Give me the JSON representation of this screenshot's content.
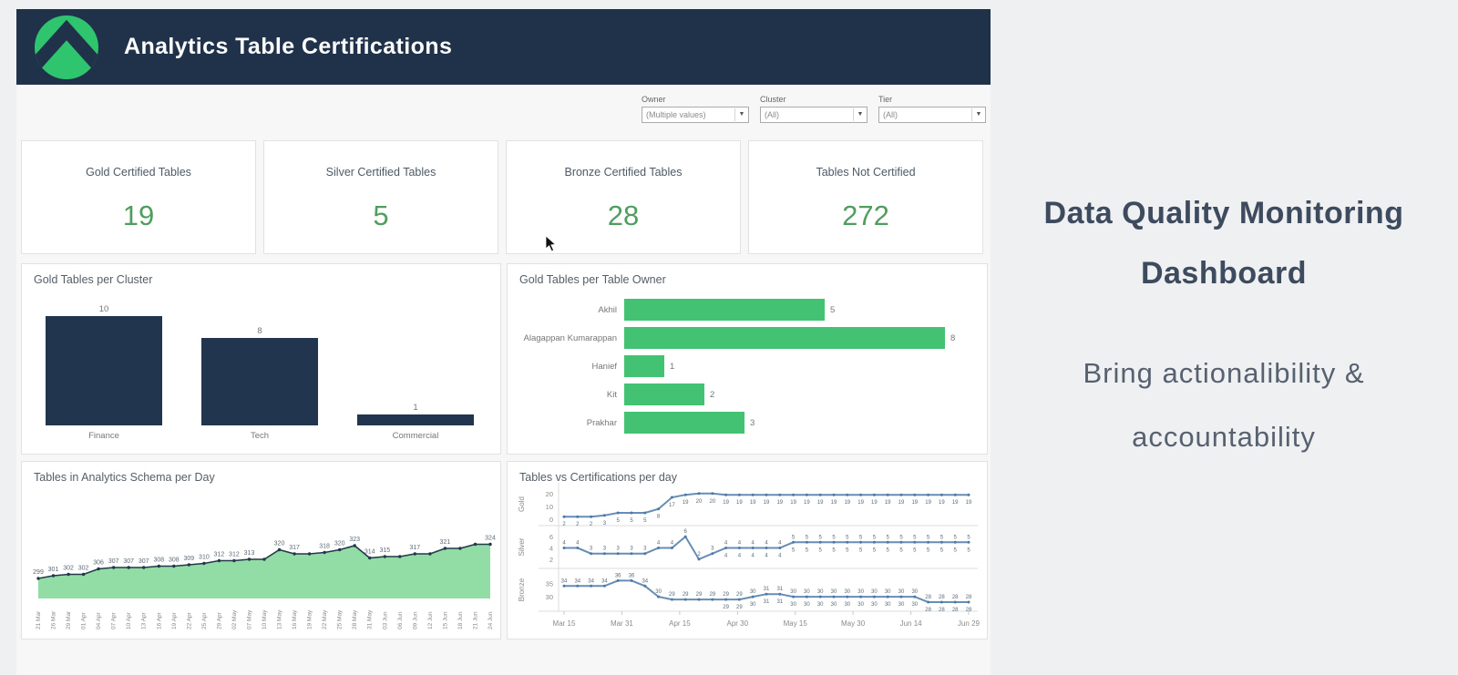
{
  "header": {
    "title": "Analytics Table Certifications",
    "logo": "green-mountain-chevron"
  },
  "filters": [
    {
      "label": "Owner",
      "value": "(Multiple values)"
    },
    {
      "label": "Cluster",
      "value": "(All)"
    },
    {
      "label": "Tier",
      "value": "(All)"
    }
  ],
  "kpis": [
    {
      "label": "Gold Certified Tables",
      "value": "19"
    },
    {
      "label": "Silver Certified Tables",
      "value": "5"
    },
    {
      "label": "Bronze Certified Tables",
      "value": "28"
    },
    {
      "label": "Tables Not Certified",
      "value": "272"
    }
  ],
  "right_panel": {
    "title_line1": "Data Quality Monitoring",
    "title_line2": "Dashboard",
    "subtitle_line1": "Bring actionalibility &",
    "subtitle_line2": "accountability"
  },
  "colors": {
    "header_navy": "#203249",
    "bar_navy": "#21354f",
    "logo_green": "#2fc56f",
    "kpi_green": "#4f9e5f",
    "owner_bar_green": "#44c273",
    "area_fill_green": "#92dca6",
    "area_line": "#24384a",
    "line_blue": "#4e79a7"
  },
  "chart_data": [
    {
      "id": "cluster",
      "type": "bar",
      "title": "Gold Tables per Cluster",
      "categories": [
        "Finance",
        "Tech",
        "Commercial"
      ],
      "values": [
        10,
        8,
        1
      ],
      "ylim": [
        0,
        10
      ],
      "bar_color": "#21354f",
      "grid": false,
      "value_labels": true
    },
    {
      "id": "owner",
      "type": "bar",
      "orientation": "horizontal",
      "title": "Gold Tables per Table Owner",
      "categories": [
        "Akhil",
        "Alagappan Kumarappan",
        "Hanief",
        "Kit",
        "Prakhar"
      ],
      "values": [
        5,
        8,
        1,
        2,
        3
      ],
      "xlim": [
        0,
        8
      ],
      "bar_color": "#44c273",
      "grid": false,
      "value_labels": true
    },
    {
      "id": "schema",
      "type": "area",
      "title": "Tables in Analytics Schema per Day",
      "x": [
        "21 Mar",
        "26 Mar",
        "29 Mar",
        "01 Apr",
        "04 Apr",
        "07 Apr",
        "10 Apr",
        "13 Apr",
        "16 Apr",
        "19 Apr",
        "22 Apr",
        "25 Apr",
        "29 Apr",
        "02 May",
        "07 May",
        "10 May",
        "13 May",
        "16 May",
        "19 May",
        "22 May",
        "25 May",
        "28 May",
        "31 May",
        "03 Jun",
        "06 Jun",
        "09 Jun",
        "12 Jun",
        "15 Jun",
        "18 Jun",
        "21 Jun",
        "24 Jun"
      ],
      "values": [
        299,
        301,
        302,
        302,
        306,
        307,
        307,
        307,
        308,
        308,
        309,
        310,
        312,
        312,
        313,
        313,
        320,
        317,
        317,
        318,
        320,
        323,
        314,
        315,
        315,
        317,
        317,
        321,
        321,
        324,
        324
      ],
      "point_labels": [
        "299",
        "301",
        "302",
        "302",
        "306",
        "307",
        "307",
        "307",
        "308",
        "308",
        "309",
        "310",
        "312",
        "312",
        "313",
        "",
        "320",
        "317",
        "",
        "318",
        "320",
        "323",
        "314",
        "315",
        "",
        "317",
        "",
        "321",
        "",
        "",
        "324"
      ],
      "ylim": [
        262,
        332
      ],
      "fill_color": "#92dca6",
      "line_color": "#24384a",
      "grid": false
    },
    {
      "id": "tiers",
      "type": "line",
      "title": "Tables vs Certifications per day",
      "x_ticks": [
        "Mar 15",
        "Mar 31",
        "Apr 15",
        "Apr 30",
        "May 15",
        "May 30",
        "Jun 14",
        "Jun 29"
      ],
      "line_color": "#4e79a7",
      "grid": false,
      "panels": [
        {
          "name": "Gold",
          "yticks": [
            20,
            10,
            0
          ],
          "ymin": 0,
          "ymax": 22,
          "values": [
            2,
            2,
            2,
            3,
            5,
            5,
            5,
            8,
            17,
            19,
            20,
            20,
            19,
            19,
            19,
            19,
            19,
            19,
            19,
            19,
            19,
            19,
            19,
            19,
            19,
            19,
            19,
            19,
            19,
            19,
            19
          ]
        },
        {
          "name": "Silver",
          "yticks": [
            6,
            4,
            2
          ],
          "ymin": 1.5,
          "ymax": 6.5,
          "values": [
            4,
            4,
            3,
            3,
            3,
            3,
            3,
            4,
            4,
            6,
            2,
            3,
            4,
            4,
            4,
            4,
            4,
            5,
            5,
            5,
            5,
            5,
            5,
            5,
            5,
            5,
            5,
            5,
            5,
            5,
            5
          ]
        },
        {
          "name": "Bronze",
          "yticks": [
            35,
            30
          ],
          "ymin": 27,
          "ymax": 37.5,
          "values": [
            34,
            34,
            34,
            34,
            36,
            36,
            34,
            30,
            29,
            29,
            29,
            29,
            29,
            29,
            30,
            31,
            31,
            30,
            30,
            30,
            30,
            30,
            30,
            30,
            30,
            30,
            30,
            28,
            28,
            28,
            28
          ]
        }
      ]
    }
  ]
}
